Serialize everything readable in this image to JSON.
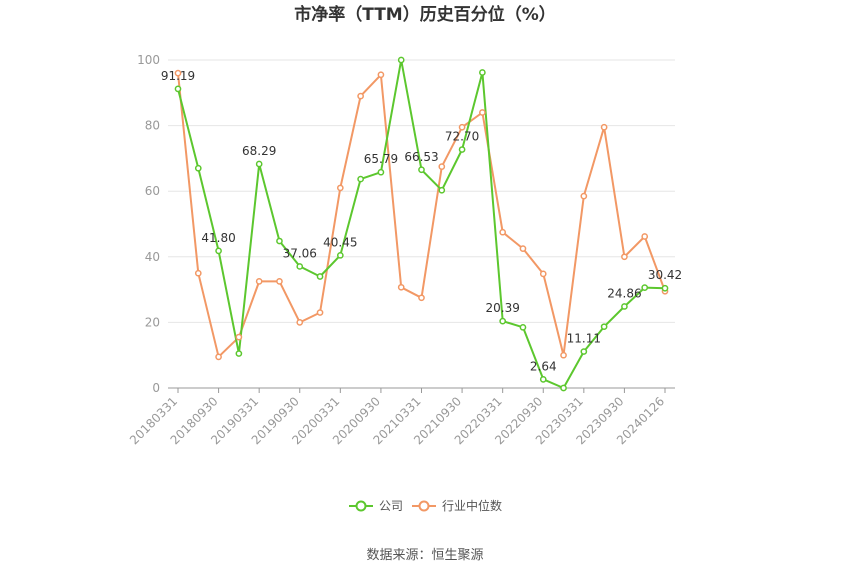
{
  "chart_data": {
    "type": "line",
    "title": "市净率（TTM）历史百分位（%）",
    "source": "数据来源：恒生聚源",
    "ylim": [
      0,
      100
    ],
    "yticks": [
      0,
      20,
      40,
      60,
      80,
      100
    ],
    "grid": true,
    "legend_position": "bottom",
    "x": [
      "20180331",
      "20180630",
      "20180930",
      "20181231",
      "20190331",
      "20190630",
      "20190930",
      "20191231",
      "20200331",
      "20200630",
      "20200930",
      "20201231",
      "20210331",
      "20210630",
      "20210930",
      "20211231",
      "20220331",
      "20220630",
      "20220930",
      "20221231",
      "20230331",
      "20230630",
      "20230930",
      "20231231",
      "20240126"
    ],
    "xtick_labels": [
      "20180331",
      "20180930",
      "20190331",
      "20190930",
      "20200331",
      "20200930",
      "20210331",
      "20210930",
      "20220331",
      "20220930",
      "20230331",
      "20230930",
      "20240126"
    ],
    "xtick_indices": [
      0,
      2,
      4,
      6,
      8,
      10,
      12,
      14,
      16,
      18,
      20,
      22,
      24
    ],
    "series": [
      {
        "name": "公司",
        "color": "#5cc72e",
        "values": [
          91.19,
          67,
          41.8,
          10.5,
          68.29,
          44.8,
          37.06,
          34,
          40.45,
          63.7,
          65.79,
          100,
          66.53,
          60.3,
          72.7,
          96.2,
          20.39,
          18.5,
          2.64,
          0,
          11.11,
          18.7,
          24.86,
          30.6,
          30.42
        ],
        "labels": {
          "0": "91.19",
          "2": "41.80",
          "4": "68.29",
          "6": "37.06",
          "8": "40.45",
          "10": "65.79",
          "12": "66.53",
          "14": "72.70",
          "16": "20.39",
          "18": "2.64",
          "20": "11.11",
          "22": "24.86",
          "24": "30.42"
        }
      },
      {
        "name": "行业中位数",
        "color": "#f29865",
        "values": [
          96,
          35,
          9.5,
          15.5,
          32.5,
          32.5,
          20,
          23,
          61,
          89,
          95.5,
          30.7,
          27.5,
          67.5,
          79.5,
          84,
          47.5,
          42.5,
          34.8,
          10,
          58.5,
          79.5,
          40,
          46.2,
          29.5
        ]
      }
    ]
  }
}
